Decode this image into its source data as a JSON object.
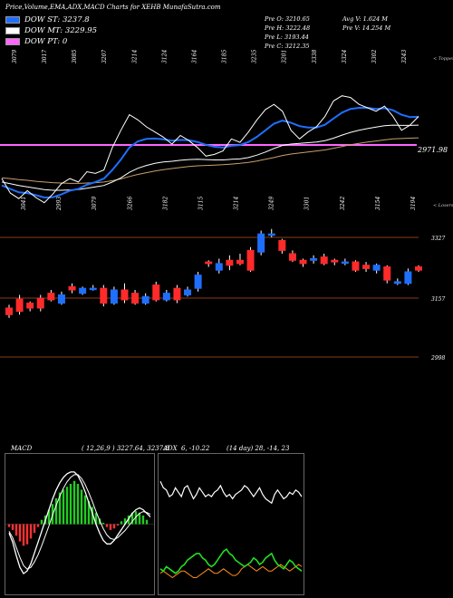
{
  "header": {
    "title": "Price,Volume,EMA,ADX,MACD Charts for XEHB MunafaSutra.com",
    "prev": {
      "o": "Pre   O: 3210.65",
      "h": "Pre   H: 3222.48",
      "l": "Pre   L: 3193.44",
      "c": "Pre   C: 3212.35"
    },
    "volume": {
      "avg": "Avg V: 1.624  M",
      "prev": "Pre   V: 14.254  M"
    }
  },
  "legend": [
    {
      "label": "DOW ST: 3237.8",
      "color": "#1f6fff"
    },
    {
      "label": "DOW MT: 3229.95",
      "color": "#ffffff"
    },
    {
      "label": "DOW PT: 0",
      "color": "#ff66ff"
    }
  ],
  "colors": {
    "bull": "#1f6fff",
    "bear": "#ff2a2a",
    "macd_hist_pos": "#22cc22",
    "macd_hist_neg": "#ff3333",
    "adx_plus": "#22dd22",
    "adx_minus": "#ff8c1a"
  },
  "chart_data": [
    {
      "type": "line",
      "name": "price-overlay-ema",
      "top_labels": [
        "3079",
        "3017",
        "3085",
        "3207",
        "3214",
        "3124",
        "3164",
        "3185",
        "3235",
        "3201",
        "3338",
        "3324",
        "3302",
        "3243"
      ],
      "bottom_labels": [
        "3041",
        "2993",
        "3079",
        "3266",
        "3182",
        "3115",
        "3214",
        "3249",
        "3301",
        "3242",
        "3154",
        "3194"
      ],
      "corner_top": "< Toppers",
      "corner_bottom": "< Losers",
      "level_label": "2971.98",
      "level_color": "#ff66ff",
      "close": [
        3060,
        3018,
        3002,
        3025,
        3005,
        2990,
        3015,
        3045,
        3060,
        3050,
        3080,
        3075,
        3085,
        3150,
        3200,
        3245,
        3230,
        3210,
        3195,
        3180,
        3160,
        3185,
        3170,
        3150,
        3125,
        3130,
        3140,
        3175,
        3165,
        3195,
        3230,
        3260,
        3275,
        3255,
        3200,
        3175,
        3195,
        3210,
        3240,
        3285,
        3300,
        3295,
        3275,
        3265,
        3255,
        3270,
        3240,
        3200,
        3215,
        3240
      ],
      "ema_fast": [
        3040,
        3030,
        3020,
        3018,
        3012,
        3005,
        3006,
        3014,
        3025,
        3030,
        3042,
        3050,
        3060,
        3085,
        3115,
        3150,
        3168,
        3175,
        3176,
        3174,
        3170,
        3172,
        3171,
        3166,
        3158,
        3152,
        3150,
        3155,
        3157,
        3166,
        3181,
        3200,
        3219,
        3228,
        3222,
        3212,
        3208,
        3208,
        3216,
        3234,
        3251,
        3262,
        3265,
        3265,
        3262,
        3264,
        3258,
        3245,
        3238,
        3239
      ],
      "ema_mid": [
        3050,
        3045,
        3040,
        3036,
        3032,
        3028,
        3026,
        3026,
        3027,
        3028,
        3032,
        3036,
        3040,
        3050,
        3062,
        3078,
        3090,
        3098,
        3104,
        3108,
        3110,
        3113,
        3115,
        3116,
        3115,
        3114,
        3114,
        3116,
        3117,
        3121,
        3128,
        3137,
        3147,
        3156,
        3160,
        3162,
        3164,
        3166,
        3170,
        3177,
        3186,
        3194,
        3200,
        3205,
        3209,
        3213,
        3215,
        3214,
        3214,
        3215
      ],
      "ema_slow": [
        3062,
        3060,
        3057,
        3055,
        3052,
        3050,
        3048,
        3047,
        3046,
        3046,
        3047,
        3048,
        3050,
        3054,
        3059,
        3066,
        3072,
        3077,
        3082,
        3086,
        3089,
        3092,
        3095,
        3097,
        3098,
        3099,
        3100,
        3102,
        3104,
        3107,
        3111,
        3116,
        3121,
        3127,
        3131,
        3134,
        3137,
        3140,
        3143,
        3148,
        3153,
        3158,
        3162,
        3166,
        3169,
        3172,
        3175,
        3176,
        3177,
        3178
      ],
      "ylim": [
        2900,
        3420
      ]
    },
    {
      "type": "bar",
      "name": "candlesticks",
      "levels": [
        "3327",
        "3157",
        "2998"
      ],
      "open": [
        3125,
        3152,
        3140,
        3155,
        3170,
        3140,
        3190,
        3170,
        3185,
        3185,
        3140,
        3180,
        3170,
        3140,
        3195,
        3150,
        3185,
        3165,
        3185,
        3265,
        3240,
        3270,
        3270,
        3300,
        3295,
        3350,
        3330,
        3290,
        3270,
        3270,
        3280,
        3270,
        3265,
        3265,
        3255,
        3240,
        3250,
        3200,
        3200,
        3250
      ],
      "close": [
        3105,
        3115,
        3125,
        3125,
        3150,
        3165,
        3180,
        3185,
        3185,
        3140,
        3180,
        3150,
        3140,
        3160,
        3150,
        3170,
        3150,
        3180,
        3225,
        3260,
        3260,
        3255,
        3260,
        3240,
        3350,
        3350,
        3300,
        3270,
        3260,
        3275,
        3260,
        3265,
        3265,
        3240,
        3245,
        3255,
        3210,
        3205,
        3235,
        3240
      ],
      "high": [
        3135,
        3165,
        3145,
        3165,
        3180,
        3175,
        3200,
        3190,
        3195,
        3195,
        3190,
        3200,
        3180,
        3170,
        3205,
        3180,
        3195,
        3190,
        3235,
        3270,
        3275,
        3285,
        3290,
        3310,
        3360,
        3365,
        3335,
        3300,
        3275,
        3285,
        3290,
        3275,
        3275,
        3270,
        3265,
        3260,
        3255,
        3215,
        3245,
        3255
      ],
      "low": [
        3095,
        3105,
        3115,
        3115,
        3145,
        3135,
        3170,
        3165,
        3178,
        3130,
        3135,
        3140,
        3135,
        3135,
        3145,
        3145,
        3140,
        3160,
        3175,
        3250,
        3230,
        3240,
        3255,
        3235,
        3285,
        3340,
        3290,
        3265,
        3250,
        3260,
        3255,
        3255,
        3255,
        3235,
        3235,
        3230,
        3200,
        3195,
        3195,
        3235
      ],
      "ylim": [
        2960,
        3400
      ]
    },
    {
      "type": "bar",
      "name": "macd",
      "title": "MACD",
      "params": "( 12,26,9 ) 3227.64,  3237.8",
      "histogram": [
        -2,
        -4,
        -8,
        -12,
        -15,
        -14,
        -10,
        -6,
        -2,
        3,
        6,
        10,
        14,
        18,
        22,
        24,
        26,
        28,
        30,
        28,
        24,
        20,
        16,
        12,
        8,
        4,
        1,
        -2,
        -4,
        -3,
        -1,
        2,
        4,
        6,
        8,
        9,
        8,
        6,
        3,
        0
      ],
      "macd": [
        -10,
        -20,
        -35,
        -48,
        -55,
        -52,
        -44,
        -32,
        -20,
        -8,
        4,
        16,
        28,
        38,
        46,
        52,
        56,
        58,
        58,
        54,
        46,
        36,
        24,
        12,
        0,
        -10,
        -18,
        -22,
        -22,
        -18,
        -12,
        -6,
        0,
        6,
        12,
        16,
        18,
        16,
        12,
        8
      ],
      "signal": [
        -8,
        -15,
        -26,
        -37,
        -46,
        -50,
        -48,
        -42,
        -34,
        -24,
        -13,
        -2,
        10,
        21,
        31,
        40,
        47,
        52,
        55,
        55,
        51,
        44,
        35,
        25,
        14,
        4,
        -5,
        -12,
        -16,
        -17,
        -15,
        -11,
        -7,
        -2,
        3,
        8,
        12,
        14,
        13,
        11
      ],
      "ylim": [
        -70,
        70
      ]
    },
    {
      "type": "line",
      "name": "adx",
      "title": "ADX",
      "params": "6,  -10.22",
      "extra": "(14  day) 28,  -14,  23",
      "adx": [
        50,
        47,
        46,
        43,
        44,
        47,
        45,
        43,
        47,
        48,
        45,
        42,
        44,
        47,
        45,
        43,
        44,
        43,
        45,
        46,
        48,
        45,
        43,
        44,
        42,
        44,
        45,
        46,
        48,
        47,
        45,
        43,
        45,
        47,
        44,
        42,
        41,
        40,
        44,
        46,
        44,
        42,
        43,
        45,
        44,
        46,
        45,
        43
      ],
      "plus_di": [
        10,
        9,
        11,
        10,
        9,
        8,
        9,
        11,
        12,
        14,
        15,
        16,
        17,
        17,
        15,
        14,
        12,
        11,
        12,
        14,
        16,
        18,
        19,
        17,
        16,
        14,
        13,
        12,
        11,
        12,
        13,
        15,
        14,
        12,
        13,
        15,
        16,
        17,
        14,
        12,
        11,
        10,
        12,
        14,
        13,
        11,
        10,
        9
      ],
      "minus_di": [
        8,
        9,
        8,
        7,
        6,
        7,
        8,
        9,
        9,
        8,
        7,
        6,
        6,
        7,
        8,
        9,
        10,
        9,
        8,
        8,
        9,
        10,
        9,
        8,
        7,
        7,
        8,
        10,
        11,
        12,
        11,
        10,
        9,
        10,
        11,
        10,
        9,
        9,
        10,
        11,
        12,
        11,
        10,
        9,
        10,
        11,
        12,
        11
      ],
      "ylim": [
        0,
        60
      ]
    }
  ]
}
